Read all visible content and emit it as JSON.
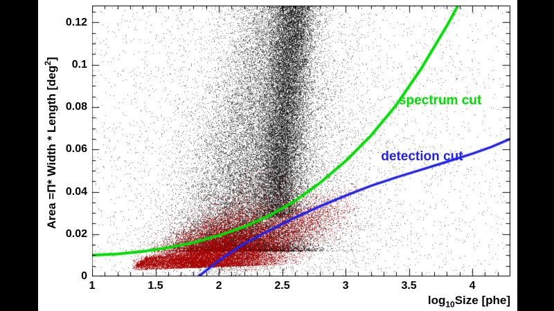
{
  "figure": {
    "background": "#ffffff",
    "letterbox_color": "#000000"
  },
  "chart_data": {
    "type": "scatter",
    "title": "",
    "x_axis": {
      "label_main": "log",
      "label_sub": "10",
      "label_end": "Size [phe]",
      "min": 1.0,
      "max": 4.3,
      "major_ticks": [
        1,
        1.5,
        2,
        2.5,
        3,
        3.5,
        4
      ],
      "major_tick_labels": [
        "1",
        "1.5",
        "2",
        "2.5",
        "3",
        "3.5",
        "4"
      ],
      "minor_tick_step": 0.1
    },
    "y_axis": {
      "label_main": "Area =Π* Width * Length [deg",
      "label_sup": "2",
      "label_end": "]",
      "min": 0.0,
      "max": 0.128,
      "major_ticks": [
        0,
        0.02,
        0.04,
        0.06,
        0.08,
        0.1,
        0.12
      ],
      "major_tick_labels": [
        "0",
        "0.02",
        "0.04",
        "0.06",
        "0.08",
        "0.1",
        "0.12"
      ],
      "minor_tick_step": 0.005
    },
    "annotations": [
      {
        "text": "spectrum cut",
        "color": "#00dd00",
        "x": 3.42,
        "y": 0.083
      },
      {
        "text": "detection cut",
        "color": "#2222ee",
        "x": 3.28,
        "y": 0.0565
      }
    ],
    "curves": [
      {
        "name": "spectrum cut",
        "color": "#00dd00",
        "line_width": 4,
        "points": [
          [
            1.0,
            0.01
          ],
          [
            1.2,
            0.0106
          ],
          [
            1.4,
            0.0118
          ],
          [
            1.6,
            0.0136
          ],
          [
            1.8,
            0.016
          ],
          [
            2.0,
            0.0193
          ],
          [
            2.2,
            0.0235
          ],
          [
            2.4,
            0.0288
          ],
          [
            2.6,
            0.0356
          ],
          [
            2.8,
            0.0443
          ],
          [
            3.0,
            0.0545
          ],
          [
            3.2,
            0.0665
          ],
          [
            3.4,
            0.081
          ],
          [
            3.6,
            0.0985
          ],
          [
            3.8,
            0.1185
          ],
          [
            3.95,
            0.135
          ]
        ]
      },
      {
        "name": "detection cut",
        "color": "#2222ee",
        "line_width": 3.5,
        "points": [
          [
            1.84,
            0.0
          ],
          [
            2.0,
            0.0075
          ],
          [
            2.2,
            0.0155
          ],
          [
            2.4,
            0.0218
          ],
          [
            2.6,
            0.0278
          ],
          [
            2.8,
            0.0332
          ],
          [
            3.0,
            0.0382
          ],
          [
            3.2,
            0.0428
          ],
          [
            3.4,
            0.0468
          ],
          [
            3.6,
            0.0505
          ],
          [
            3.8,
            0.0542
          ],
          [
            4.0,
            0.058
          ],
          [
            4.15,
            0.0612
          ],
          [
            4.3,
            0.065
          ]
        ]
      }
    ],
    "scatter_series": [
      {
        "name": "black-points",
        "color": "#000000",
        "alpha": 0.6,
        "clusters": [
          {
            "kind": "column",
            "count": 15000,
            "y0": 0.028,
            "y1": 0.135,
            "xBase": 2.42,
            "xSlope": 1.4,
            "xSd": 0.085
          },
          {
            "kind": "fan",
            "count": 26000,
            "yBase": 0.012,
            "yAmp": 0.12,
            "yPow": 2.0,
            "cx0": 2.16,
            "cxSlope": 2.6,
            "sd0": 0.3,
            "sdSlope": -0.9,
            "sdMin": 0.15
          },
          {
            "kind": "gauss",
            "count": 5000,
            "mx": 2.45,
            "sx": 0.5,
            "my": 0.055,
            "sy": 0.04
          },
          {
            "kind": "gauss",
            "count": 2500,
            "mx": 2.05,
            "sx": 0.22,
            "my": 0.012,
            "sy": 0.006
          },
          {
            "kind": "uniform",
            "count": 2600,
            "x0": 1.0,
            "x1": 4.3,
            "y0": 0.0,
            "y1": 0.128
          }
        ]
      },
      {
        "name": "red-points",
        "color": "#aa0000",
        "alpha": 0.7,
        "clusters": [
          {
            "kind": "wedge",
            "count": 17000,
            "mx": 2.0,
            "sx": 0.27,
            "xMin": 1.32,
            "xMax": 3.05,
            "xKnee": 1.35,
            "yFloor": 0.0025,
            "base0": 0.0035,
            "baseSlope": 0.0145,
            "lo": 0.15,
            "spread": 0.85
          },
          {
            "kind": "streak",
            "count": 900,
            "x0": 1.35,
            "x1": 1.95,
            "xPow": 1.6,
            "level": 0.005,
            "slope": 0.004,
            "sd": 0.0006
          },
          {
            "kind": "streak",
            "count": 700,
            "x0": 1.38,
            "x1": 1.9,
            "xPow": 1.6,
            "level": 0.0065,
            "slope": 0.005,
            "sd": 0.0005
          },
          {
            "kind": "streak",
            "count": 600,
            "x0": 1.42,
            "x1": 1.95,
            "xPow": 1.5,
            "level": 0.0082,
            "slope": 0.006,
            "sd": 0.0005
          },
          {
            "kind": "tail",
            "count": 3500,
            "mx": 2.55,
            "sx": 0.26,
            "xMin": 2.0,
            "xMax": 3.1,
            "yBase": 0.01,
            "ySlope": 0.022,
            "sd": 0.006,
            "yMin": 0.003
          }
        ]
      }
    ],
    "seed": 1337
  }
}
